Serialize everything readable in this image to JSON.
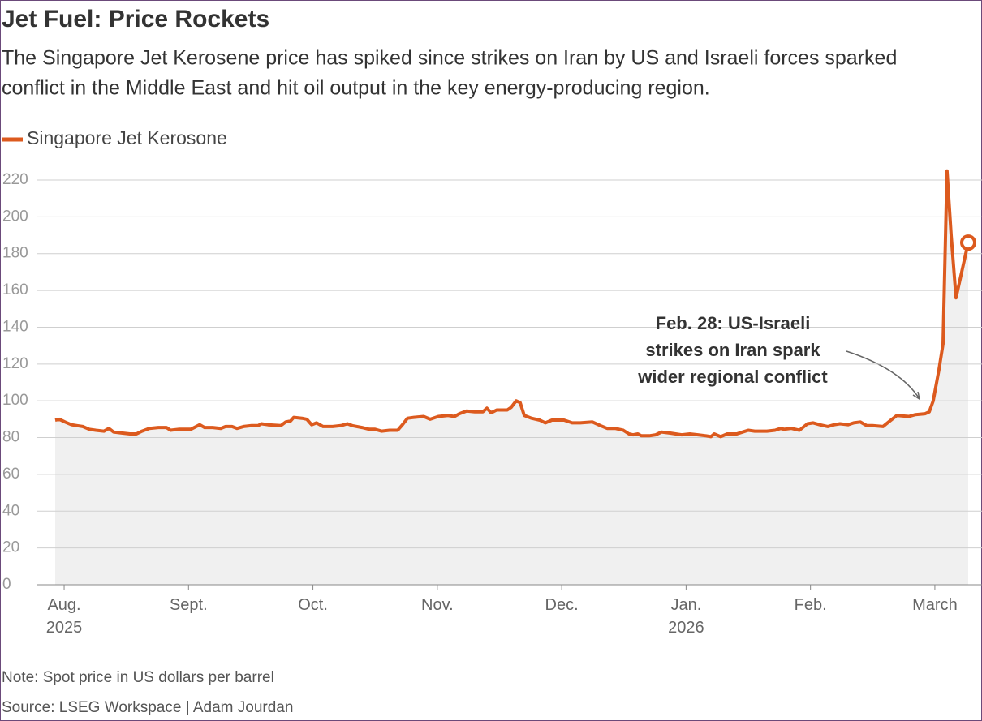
{
  "chart_data": {
    "type": "line",
    "title": "Jet Fuel: Price Rockets",
    "subtitle": [
      "The Singapore Jet Kerosene price has spiked since strikes on Iran by US and Israeli forces sparked",
      "conflict in the Middle East and hit oil output in the key energy-producing region."
    ],
    "note": "Note: Spot price in US dollars per barrel",
    "source": "Source: LSEG Workspace | Adam Jourdan",
    "annotation": [
      "Feb. 28: US-Israeli",
      "strikes on Iran spark",
      "wider regional conflict"
    ],
    "grid": true,
    "legend": "top-left",
    "ylim": [
      0,
      220
    ],
    "yticks": [
      0,
      20,
      40,
      60,
      80,
      100,
      120,
      140,
      160,
      180,
      200,
      220
    ],
    "xlim": [
      -0.072,
      7.268
    ],
    "xticks": [
      {
        "value": 0,
        "label": "Aug.\n2025"
      },
      {
        "value": 1,
        "label": "Sept."
      },
      {
        "value": 2,
        "label": "Oct."
      },
      {
        "value": 3,
        "label": "Nov."
      },
      {
        "value": 4,
        "label": "Dec."
      },
      {
        "value": 5,
        "label": "Jan.\n2026"
      },
      {
        "value": 6,
        "label": "Feb."
      },
      {
        "value": 7,
        "label": "March"
      }
    ],
    "x": [
      -0.072,
      -0.039,
      0.007,
      0.059,
      0.104,
      0.15,
      0.202,
      0.254,
      0.32,
      0.359,
      0.398,
      0.463,
      0.528,
      0.581,
      0.626,
      0.685,
      0.757,
      0.822,
      0.855,
      0.92,
      1.018,
      1.09,
      1.129,
      1.194,
      1.259,
      1.298,
      1.35,
      1.39,
      1.442,
      1.507,
      1.559,
      1.585,
      1.638,
      1.742,
      1.781,
      1.82,
      1.846,
      1.912,
      1.951,
      1.99,
      2.029,
      2.081,
      2.159,
      2.225,
      2.277,
      2.316,
      2.394,
      2.453,
      2.499,
      2.551,
      2.616,
      2.681,
      2.72,
      2.76,
      2.812,
      2.89,
      2.942,
      3.008,
      3.086,
      3.138,
      3.177,
      3.236,
      3.301,
      3.366,
      3.399,
      3.432,
      3.477,
      3.562,
      3.595,
      3.634,
      3.666,
      3.699,
      3.758,
      3.823,
      3.869,
      3.921,
      4.019,
      4.084,
      4.149,
      4.247,
      4.312,
      4.365,
      4.43,
      4.495,
      4.541,
      4.573,
      4.612,
      4.639,
      4.704,
      4.756,
      4.802,
      4.867,
      4.965,
      5.03,
      5.095,
      5.16,
      5.2,
      5.226,
      5.278,
      5.33,
      5.408,
      5.454,
      5.5,
      5.552,
      5.65,
      5.715,
      5.761,
      5.787,
      5.846,
      5.911,
      5.976,
      6.022,
      6.074,
      6.139,
      6.191,
      6.237,
      6.302,
      6.348,
      6.4,
      6.452,
      6.498,
      6.583,
      6.628,
      6.694,
      6.791,
      6.844,
      6.922,
      6.955,
      6.987,
      7.033,
      7.066,
      7.098,
      7.131,
      7.17,
      7.216,
      7.268
    ],
    "series": [
      {
        "name": "Singapore Jet Kerosone",
        "color": "#dc5a1e",
        "values": [
          89.5,
          90,
          88.5,
          87,
          86.5,
          86,
          84.5,
          84,
          83.5,
          85,
          83,
          82.5,
          82,
          82,
          83.5,
          85,
          85.5,
          85.5,
          84,
          84.5,
          84.5,
          87,
          85.5,
          85.5,
          85,
          86,
          86,
          85,
          86,
          86.5,
          86.5,
          87.5,
          87,
          86.5,
          88.5,
          89,
          91,
          90.5,
          90,
          87,
          88,
          86,
          86,
          86.5,
          87.5,
          86.5,
          85.5,
          84.5,
          84.5,
          83.5,
          84,
          84,
          87,
          90.5,
          91,
          91.5,
          90,
          91.5,
          92,
          91.5,
          93,
          94.5,
          94,
          94,
          96,
          93.5,
          95,
          95,
          96.5,
          100,
          99,
          92,
          90.5,
          89.5,
          88,
          89.5,
          89.5,
          88,
          88,
          88.5,
          86.5,
          85,
          85,
          84,
          82,
          81.5,
          82,
          81,
          81,
          81.5,
          83,
          82.5,
          81.5,
          82,
          81.5,
          81,
          80.5,
          82,
          80.5,
          82,
          82,
          83,
          84,
          83.5,
          83.5,
          84,
          85,
          84.5,
          85,
          84,
          87.5,
          88,
          87,
          86,
          87,
          87.5,
          87,
          88,
          88.5,
          86.5,
          86.5,
          86,
          88.5,
          92,
          91.5,
          92.5,
          93,
          94,
          100,
          117,
          131,
          225,
          190,
          156,
          170,
          186
        ]
      }
    ]
  }
}
